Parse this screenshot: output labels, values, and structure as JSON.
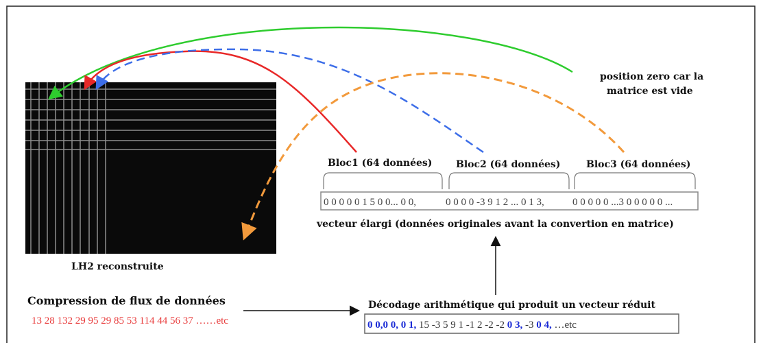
{
  "matrix_label": "LH2 reconstruite",
  "note": {
    "lines": [
      "position zero car la",
      "matrice est vide"
    ]
  },
  "blocks": [
    "Bloc1 (64 données)",
    "Bloc2 (64 données)",
    "Bloc3 (64 données)"
  ],
  "expanded_vector": {
    "segments": [
      "0 0 0 0 0 1 5 0 0... 0 0,",
      "0 0 0 0 -3 9 1 2 ... 0 1 3,",
      "0 0 0 0 0 ...3 0 0 0 0 0 ..."
    ],
    "caption": "vecteur élargi  (données originales avant la convertion en matrice)"
  },
  "compression": {
    "title": "Compression de flux de données",
    "stream": "13 28 132 29 95 29 85 53 114 44 56 37 ……etc"
  },
  "decoding": {
    "title": "Décodage arithmétique qui produit un vecteur réduit",
    "segments": [
      {
        "text": "0 0,0 0, 0 1,",
        "color": "#1a2bd6"
      },
      {
        "text": " 15 -3 5 9 1 -1 2 -2 -2 ",
        "color": "#333333"
      },
      {
        "text": "0 3,",
        "color": "#1a2bd6"
      },
      {
        "text": " -3 ",
        "color": "#333333"
      },
      {
        "text": "0 4,",
        "color": "#1a2bd6"
      },
      {
        "text": " …etc",
        "color": "#333333"
      }
    ]
  }
}
